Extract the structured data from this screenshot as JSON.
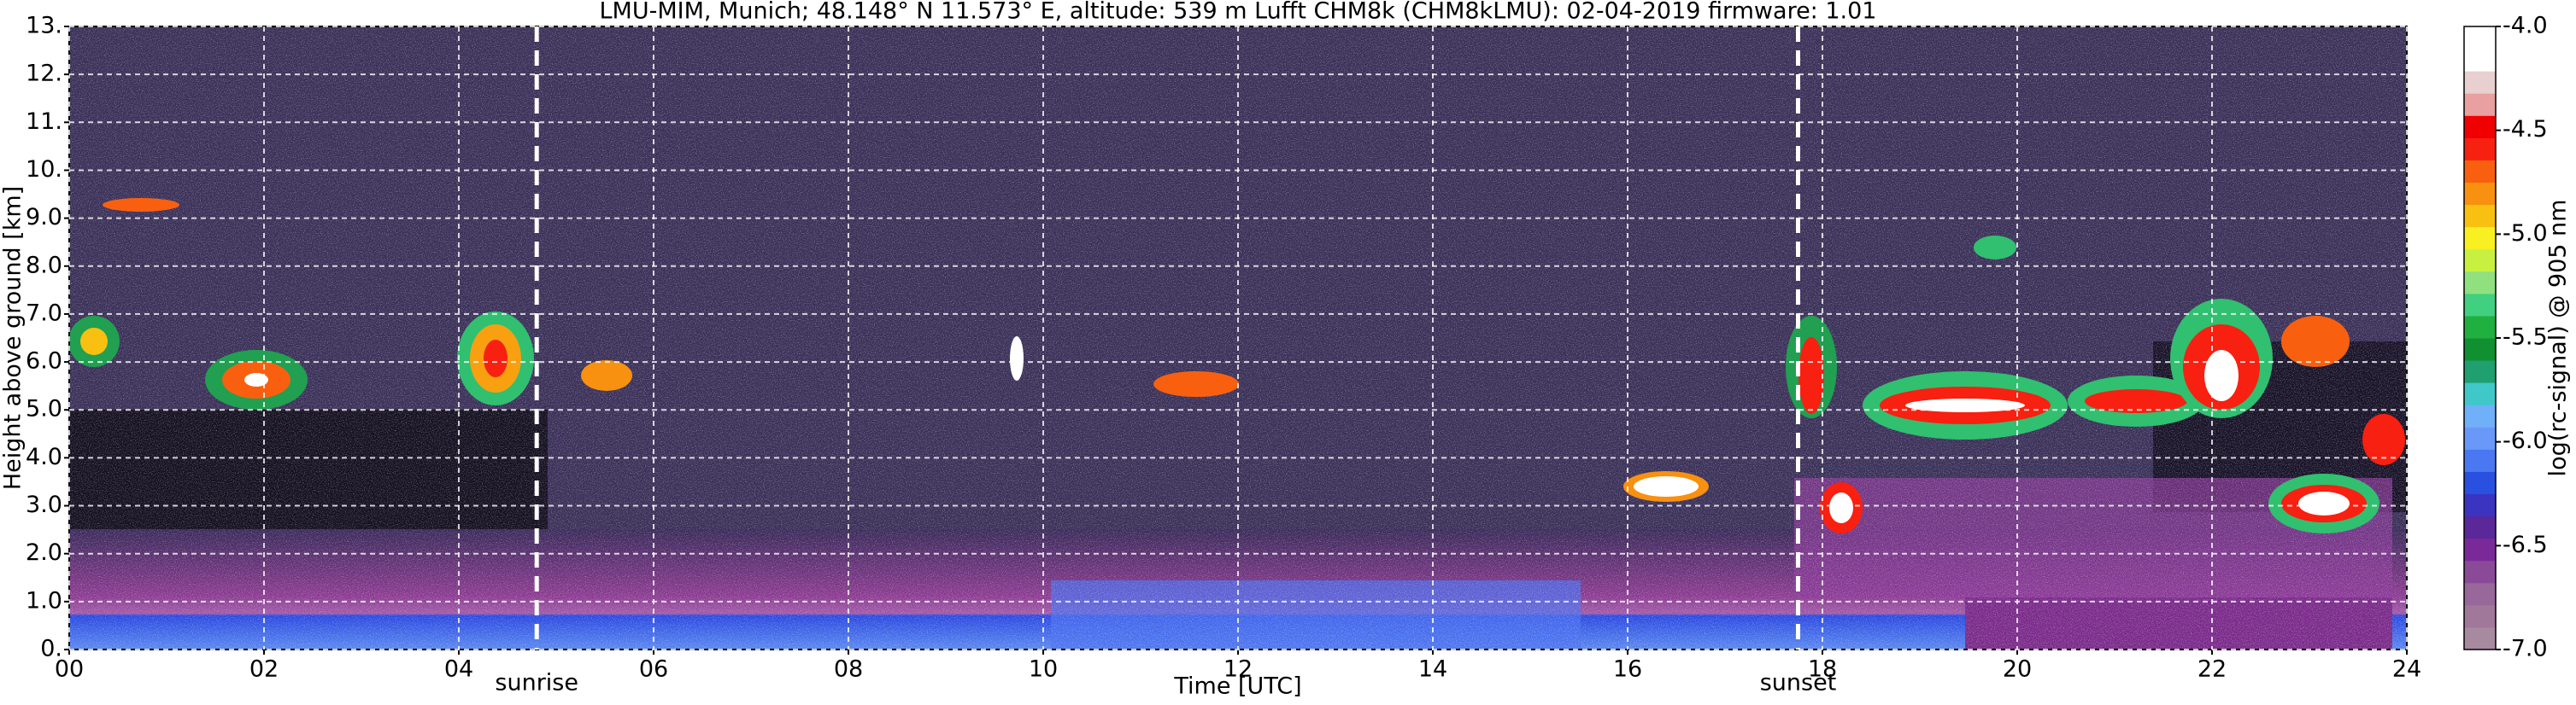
{
  "chart_data": {
    "type": "heatmap",
    "title": "LMU-MIM, Munich; 48.148° N 11.573° E, altitude: 539 m    Lufft CHM8k (CHM8kLMU): 02-04-2019    firmware: 1.01",
    "x_label": "Time [UTC]",
    "y_label": "Height above ground [km]",
    "xlim": [
      0,
      24
    ],
    "xticks": [
      {
        "value": 0,
        "label": "00"
      },
      {
        "value": 2,
        "label": "02"
      },
      {
        "value": 4,
        "label": "04"
      },
      {
        "value": 6,
        "label": "06"
      },
      {
        "value": 8,
        "label": "08"
      },
      10,
      12,
      14,
      16,
      18,
      20,
      22,
      24
    ],
    "ylim": [
      0,
      13
    ],
    "yticks": [
      {
        "value": 0,
        "label": "0."
      },
      {
        "value": 1,
        "label": "1.0"
      },
      {
        "value": 2,
        "label": "2.0"
      },
      {
        "value": 3,
        "label": "3.0"
      },
      {
        "value": 4,
        "label": "4.0"
      },
      {
        "value": 5,
        "label": "5.0"
      },
      {
        "value": 6,
        "label": "6.0"
      },
      {
        "value": 7,
        "label": "7.0"
      },
      {
        "value": 8,
        "label": "8.0"
      },
      {
        "value": 9,
        "label": "9.0"
      },
      {
        "value": 10,
        "label": "10."
      },
      {
        "value": 11,
        "label": "11."
      },
      {
        "value": 12,
        "label": "12."
      },
      {
        "value": 13,
        "label": "13."
      }
    ],
    "grid": true,
    "annotations": [
      {
        "text": "sunrise",
        "x": 4.8
      },
      {
        "text": "sunset",
        "x": 17.75
      }
    ],
    "colorbar": {
      "label": "log(rc-signal) @ 905 nm",
      "lim": [
        -7,
        -4
      ],
      "ticks": [
        {
          "value": -4,
          "label": "-4.0"
        },
        -4.5,
        {
          "value": -5,
          "label": "-5.0"
        },
        -5.5,
        {
          "value": -6,
          "label": "-6.0"
        },
        -6.5,
        {
          "value": -7,
          "label": "-7.0"
        }
      ],
      "colors": [
        "#a88aa0",
        "#a0789a",
        "#98689a",
        "#8a4a98",
        "#7a2a98",
        "#5a2898",
        "#3a34c0",
        "#2a50e0",
        "#4a78f0",
        "#6a98f8",
        "#70b0f8",
        "#40c8c8",
        "#20a070",
        "#109030",
        "#20b040",
        "#40d080",
        "#90e080",
        "#c8f040",
        "#f8f020",
        "#f8c010",
        "#f89010",
        "#f86010",
        "#f82010",
        "#f00000",
        "#e8a0a0",
        "#e8d0d0",
        "#ffffff",
        "#ffffff"
      ]
    }
  }
}
